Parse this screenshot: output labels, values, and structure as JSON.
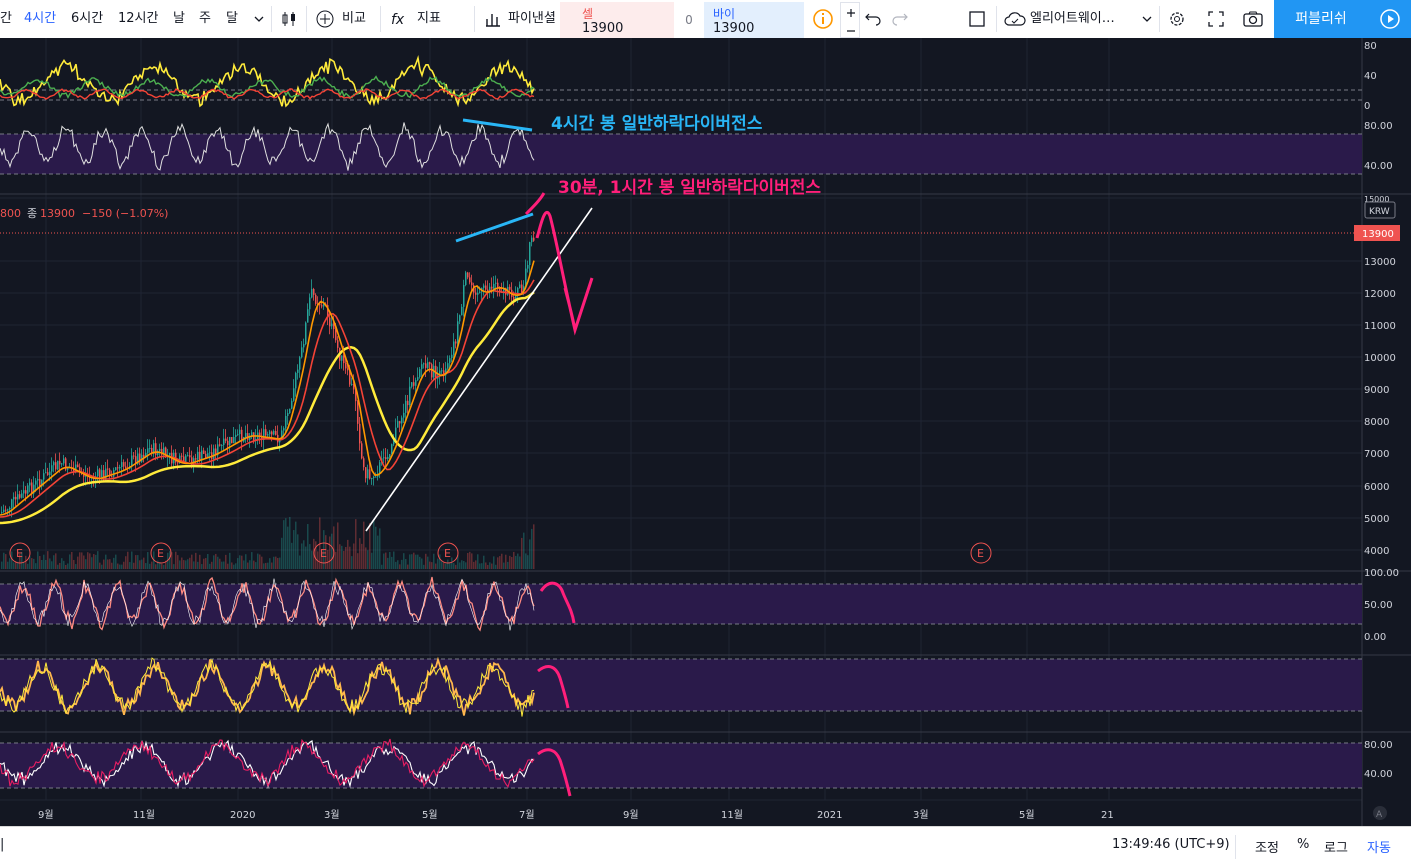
{
  "toolbar": {
    "intervals": [
      "간",
      "4시간",
      "6시간",
      "12시간",
      "날",
      "주",
      "달"
    ],
    "compare": "비교",
    "indicators": "지표",
    "template": "파이낸셜",
    "sell_label": "셀",
    "sell_price": "13900",
    "spread": "0",
    "buy_label": "바이",
    "buy_price": "13900",
    "alert_name": "엘리어트웨이…",
    "publish": "퍼블리쉬"
  },
  "legend": {
    "ohlc_prefix": "800",
    "close_label": "종",
    "close_value": "13900",
    "change": "−150 (−1.07%)"
  },
  "price_axis": {
    "currency": "KRW",
    "current_price": "13900",
    "ticks": [
      "15000",
      "13000",
      "12000",
      "11000",
      "10000",
      "9000",
      "8000",
      "7000",
      "6000",
      "5000",
      "4000"
    ]
  },
  "indicator_axes": {
    "top": [
      "80",
      "40",
      "0"
    ],
    "rsi": [
      "80.00",
      "40.00"
    ],
    "osc1": [
      "100.00",
      "50.00",
      "0.00"
    ],
    "stoch": [
      "80.00",
      "40.00"
    ]
  },
  "time_axis": [
    "9월",
    "11월",
    "2020",
    "3월",
    "5월",
    "7월",
    "9월",
    "11월",
    "2021",
    "3월",
    "5월",
    "21"
  ],
  "annotations": {
    "div_4h": "4시간 봉 일반하락다이버전스",
    "div_30m": "30분, 1시간 봉 일반하락다이버전스"
  },
  "earnings_marker": "E",
  "bottom_bar": {
    "time": "13:49:46 (UTC+9)",
    "adjust": "조정",
    "percent": "%",
    "log": "로그",
    "auto": "자동"
  },
  "colors": {
    "background": "#131722",
    "up": "#26a69a",
    "down": "#ef5350",
    "ma_yellow": "#ffeb3b",
    "ma_orange": "#ff9800",
    "ma_red": "#f44336",
    "annotation_blue": "#29b6f6",
    "annotation_pink": "#ff1f7a",
    "indicator_bg": "#2a1a4a",
    "accent": "#2962ff"
  }
}
